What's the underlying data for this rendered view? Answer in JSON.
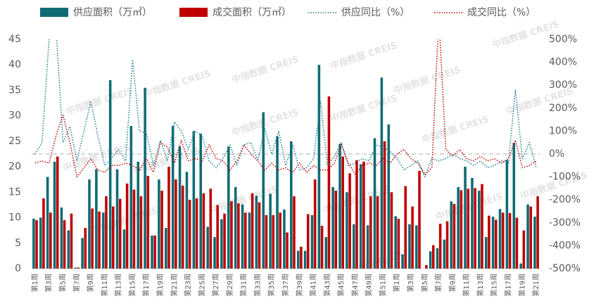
{
  "chart_data": {
    "type": "bar-line",
    "watermark": "中指数据 CREIS",
    "categories": [
      "第1周",
      null,
      "第3周",
      null,
      "第5周",
      null,
      "第7周",
      null,
      "第9周",
      null,
      "第11周",
      null,
      "第13周",
      null,
      "第15周",
      null,
      "第17周",
      null,
      "第19周",
      null,
      "第21周",
      null,
      "第23周",
      null,
      "第25周",
      null,
      "第27周",
      null,
      "第29周",
      null,
      "第31周",
      null,
      "第33周",
      null,
      "第35周",
      null,
      "第37周",
      null,
      "第39周",
      null,
      "第41周",
      null,
      "第43周",
      null,
      "第45周",
      null,
      "第47周",
      null,
      "第49周",
      null,
      "第51周",
      null,
      "第1周",
      null,
      "第3周",
      null,
      "第5周",
      null,
      "第7周",
      null,
      "第9周",
      null,
      "第11周",
      null,
      "第13周",
      null,
      "第15周",
      null,
      "第17周",
      null,
      "第19周",
      null,
      "第21周"
    ],
    "series": [
      {
        "name": "供应面积（万㎡）",
        "kind": "bar",
        "color": "#0e6b73",
        "values": [
          9.8,
          10,
          18,
          21,
          12,
          7.5,
          0.2,
          6,
          17.5,
          19.5,
          11,
          37,
          19.5,
          7.7,
          28,
          21,
          35.5,
          6.5,
          17.5,
          8,
          28,
          24,
          19,
          27,
          26.5,
          8.2,
          6.2,
          9.7,
          24,
          16,
          12.6,
          11,
          14.3,
          30.7,
          14.7,
          26,
          11.6,
          25,
          3.5,
          3.5,
          10.5,
          40,
          6.2,
          16,
          24.5,
          15,
          8.7,
          20.5,
          8.5,
          25.6,
          37.5,
          28.3,
          10.3,
          2.8,
          8.7,
          8.5,
          0,
          3.4,
          4,
          5.7,
          13.2,
          16,
          20,
          17.8,
          15.3,
          6.2,
          10.2,
          11.7,
          21.3,
          24.7,
          1,
          12.6,
          10.2
        ]
      },
      {
        "name": "成交面积（万㎡）",
        "kind": "bar",
        "color": "#c00000",
        "values": [
          9.5,
          13.8,
          11,
          22,
          9.5,
          10.8,
          0.2,
          8,
          11.8,
          11.2,
          14.2,
          12.2,
          13.7,
          16.7,
          15.5,
          14.2,
          18.2,
          6.5,
          15.3,
          20,
          17.5,
          16.3,
          13.5,
          13.8,
          14.8,
          15.7,
          12.5,
          10.8,
          13.2,
          12.8,
          11,
          14.8,
          13,
          10.5,
          10.5,
          11,
          7.1,
          14.2,
          4.3,
          10.7,
          17.5,
          8.4,
          33.8,
          15.3,
          22,
          18.7,
          21.3,
          21,
          14.2,
          14.2,
          25,
          15,
          9.8,
          16.2,
          12.2,
          19.2,
          0.7,
          4.6,
          8.8,
          9.3,
          12.7,
          15.4,
          15.7,
          15.8,
          16.6,
          10.4,
          9.6,
          11,
          10.9,
          10,
          7.5,
          12.2,
          14.2
        ]
      },
      {
        "name": "供应同比（%）",
        "kind": "line",
        "axis": "y2",
        "color": "#1a7f8a",
        "values": [
          0,
          50,
          500,
          550,
          50,
          120,
          -30,
          100,
          230,
          80,
          -50,
          -20,
          20,
          -30,
          410,
          100,
          90,
          -50,
          60,
          -30,
          140,
          100,
          20,
          100,
          80,
          -30,
          -60,
          -20,
          40,
          -50,
          40,
          50,
          -30,
          110,
          0,
          100,
          -50,
          40,
          -70,
          -60,
          -20,
          230,
          -50,
          -10,
          50,
          -50,
          -40,
          -20,
          -30,
          40,
          30,
          10,
          -20,
          -70,
          -50,
          -30,
          -100,
          -20,
          -30,
          -20,
          0,
          -20,
          -30,
          -50,
          -30,
          -60,
          -50,
          -30,
          -40,
          280,
          -20,
          50,
          -60
        ]
      },
      {
        "name": "成交同比（%）",
        "kind": "line",
        "axis": "y2",
        "color": "#c00000",
        "values": [
          -40,
          -30,
          -40,
          80,
          170,
          50,
          -100,
          -60,
          -20,
          -70,
          -80,
          -50,
          -50,
          -40,
          -50,
          -70,
          -20,
          -80,
          50,
          30,
          -40,
          60,
          -30,
          -20,
          -30,
          40,
          -20,
          -30,
          -70,
          -30,
          40,
          0,
          -30,
          -70,
          -40,
          -70,
          -60,
          -80,
          -40,
          -80,
          -50,
          -70,
          -70,
          -40,
          40,
          -40,
          -90,
          -50,
          -40,
          -50,
          -20,
          -40,
          0,
          20,
          -20,
          -40,
          -90,
          -60,
          600,
          20,
          -10,
          20,
          -20,
          -30,
          -10,
          -30,
          -20,
          -40,
          -20,
          60,
          -60,
          -50,
          -30
        ]
      }
    ],
    "ylim": [
      0,
      45
    ],
    "yticks": [
      0,
      5,
      10,
      15,
      20,
      25,
      30,
      35,
      40,
      45
    ],
    "y2lim": [
      -500,
      500
    ],
    "y2ticks": [
      {
        "value": -500,
        "label": "-500%"
      },
      {
        "value": -400,
        "label": "-400%"
      },
      {
        "value": -300,
        "label": "-300%"
      },
      {
        "value": -200,
        "label": "-200%"
      },
      {
        "value": -100,
        "label": "-100%"
      },
      {
        "value": 0,
        "label": "0%"
      },
      {
        "value": 100,
        "label": "100%"
      },
      {
        "value": 200,
        "label": "200%"
      },
      {
        "value": 300,
        "label": "300%"
      },
      {
        "value": 400,
        "label": "400%"
      },
      {
        "value": 500,
        "label": "500%"
      }
    ],
    "y2_zero_line": true,
    "legend": "top"
  }
}
